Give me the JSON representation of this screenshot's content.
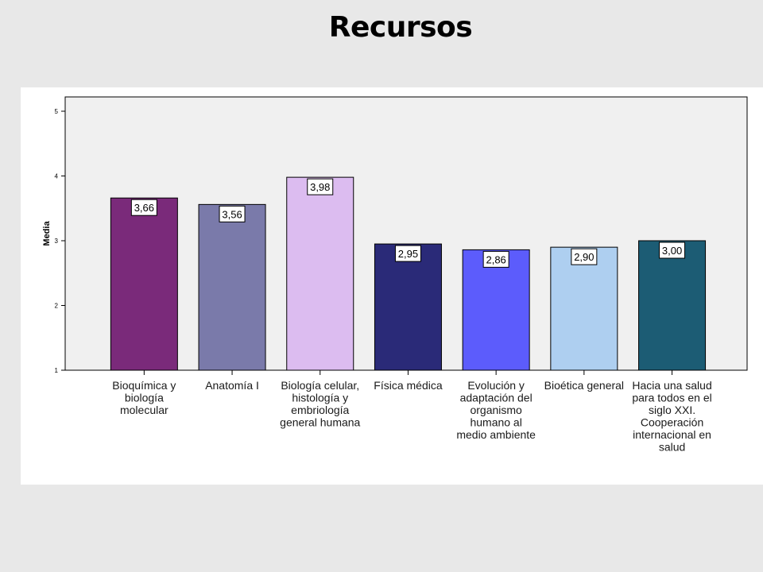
{
  "slide": {
    "title": "Recursos"
  },
  "chart_data": {
    "type": "bar",
    "ylabel": "Media",
    "xlabel": "",
    "ylim": [
      1,
      5
    ],
    "yticks": [
      1,
      2,
      3,
      4,
      5
    ],
    "grid": false,
    "categories": [
      "Bioquímica y biología molecular",
      "Anatomía I",
      "Biología celular, histología y embriología general humana",
      "Física médica",
      "Evolución y adaptación del organismo humano al medio ambiente",
      "Bioética general",
      "Hacia una salud para todos en el siglo XXI. Cooperación internacional en salud"
    ],
    "category_lines": [
      [
        "Bioquímica y",
        "biología",
        "molecular"
      ],
      [
        "Anatomía I"
      ],
      [
        "Biología celular,",
        "histología y",
        "embriología",
        "general humana"
      ],
      [
        "Física médica"
      ],
      [
        "Evolución y",
        "adaptación del",
        "organismo",
        "humano al",
        "medio ambiente"
      ],
      [
        "Bioética general"
      ],
      [
        "Hacia una salud",
        "para todos en el",
        "siglo XXI.",
        "Cooperación",
        "internacional en",
        "salud"
      ]
    ],
    "values": [
      3.66,
      3.56,
      3.98,
      2.95,
      2.86,
      2.9,
      3.0
    ],
    "value_labels": [
      "3,66",
      "3,56",
      "3,98",
      "2,95",
      "2,86",
      "2,90",
      "3,00"
    ],
    "colors": [
      "#7a2a7a",
      "#7a7aaa",
      "#dcbcf0",
      "#2a2a78",
      "#5c5cfc",
      "#aecff0",
      "#1c5c74"
    ]
  }
}
